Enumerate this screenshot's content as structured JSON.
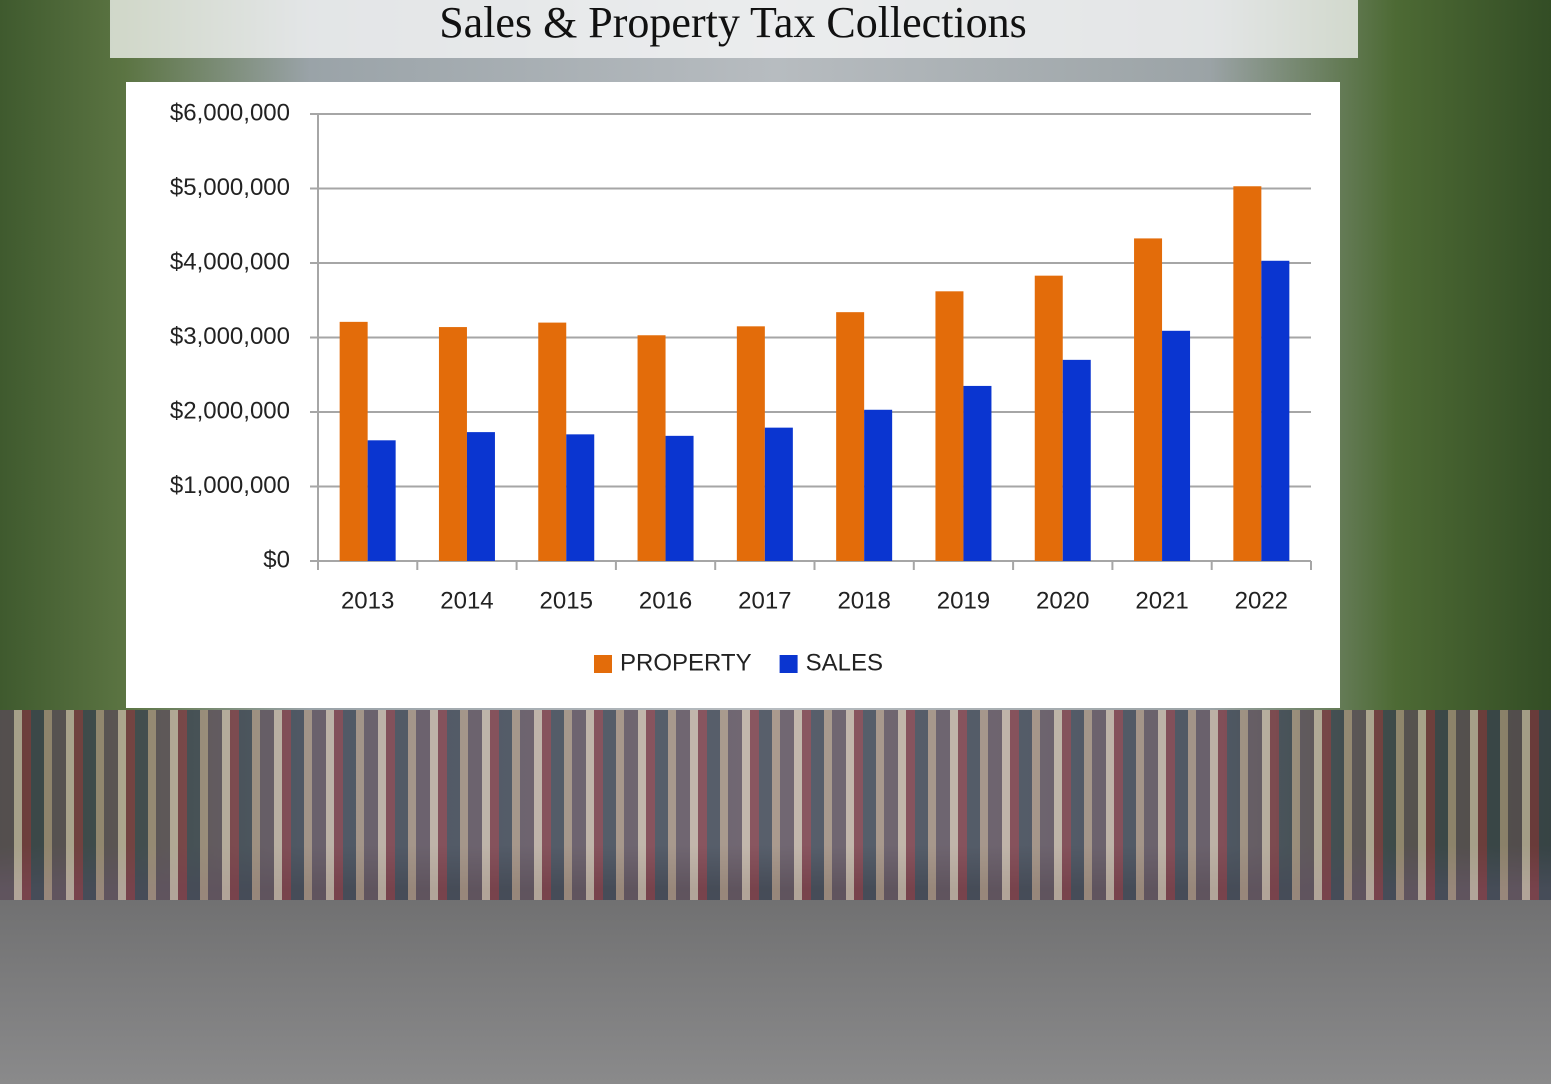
{
  "chart_data": {
    "type": "bar",
    "title": "Sales & Property Tax Collections",
    "categories": [
      "2013",
      "2014",
      "2015",
      "2016",
      "2017",
      "2018",
      "2019",
      "2020",
      "2021",
      "2022"
    ],
    "series": [
      {
        "name": "PROPERTY",
        "color": "#e36c0a",
        "values": [
          3210000,
          3140000,
          3200000,
          3030000,
          3150000,
          3340000,
          3620000,
          3830000,
          4330000,
          5030000
        ]
      },
      {
        "name": "SALES",
        "color": "#0a35d0",
        "values": [
          1620000,
          1730000,
          1700000,
          1680000,
          1790000,
          2030000,
          2350000,
          2700000,
          3090000,
          4030000
        ]
      }
    ],
    "ylim": [
      0,
      6000000
    ],
    "yticks": [
      {
        "value": 0,
        "label": "$0"
      },
      {
        "value": 1000000,
        "label": "$1,000,000"
      },
      {
        "value": 2000000,
        "label": "$2,000,000"
      },
      {
        "value": 3000000,
        "label": "$3,000,000"
      },
      {
        "value": 4000000,
        "label": "$4,000,000"
      },
      {
        "value": 5000000,
        "label": "$5,000,000"
      },
      {
        "value": 6000000,
        "label": "$6,000,000"
      }
    ],
    "grid": true,
    "legend": "bottom"
  }
}
